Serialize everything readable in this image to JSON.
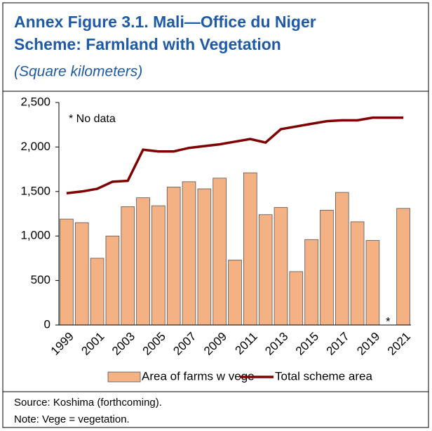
{
  "chart_data": {
    "type": "bar-line",
    "title": [
      "Annex Figure 3.1. Mali—Office du Niger",
      "Scheme: Farmland with Vegetation"
    ],
    "subtitle": "(Square kilometers)",
    "annotation": "* No data",
    "no_data_marker": "*",
    "categories": [
      "1999",
      null,
      "2001",
      null,
      "2003",
      null,
      "2005",
      null,
      "2007",
      null,
      "2009",
      null,
      "2011",
      null,
      "2013",
      null,
      "2015",
      null,
      "2017",
      null,
      "2019",
      null,
      "2021"
    ],
    "series": [
      {
        "name": "Area of farms w vege",
        "type": "bar",
        "color": "#f4b183",
        "values": [
          1190,
          1150,
          750,
          1000,
          1330,
          1430,
          1340,
          1550,
          1610,
          1530,
          1650,
          730,
          1710,
          1240,
          1320,
          600,
          960,
          1290,
          1490,
          1160,
          950,
          null,
          1310
        ]
      },
      {
        "name": "Total scheme area",
        "type": "line",
        "color": "#7f0000",
        "values": [
          1480,
          1500,
          1530,
          1610,
          1620,
          1970,
          1950,
          1950,
          1990,
          2010,
          2030,
          2060,
          2090,
          2050,
          2200,
          2230,
          2260,
          2290,
          2300,
          2300,
          2330,
          2330,
          2330
        ]
      }
    ],
    "ylim": [
      0,
      2500
    ],
    "yticks": [
      0,
      500,
      {
        "value": 1000,
        "label": "1,000"
      },
      {
        "value": 1500,
        "label": "1,500"
      },
      {
        "value": 2000,
        "label": "2,000"
      },
      {
        "value": 2500,
        "label": "2,500"
      }
    ],
    "grid": false,
    "legend": "bottom",
    "source": "Source: Koshima (forthcoming).",
    "note": "Note: Vege = vegetation."
  }
}
